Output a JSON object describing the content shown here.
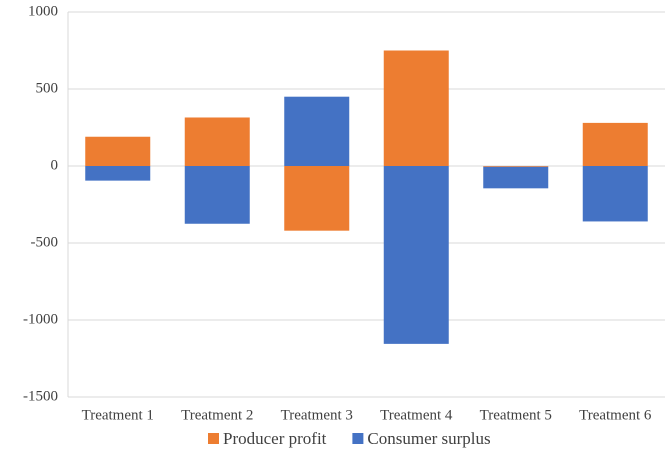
{
  "chart_data": {
    "type": "stacked-bar",
    "categories": [
      "Treatment 1",
      "Treatment 2",
      "Treatment 3",
      "Treatment 4",
      "Treatment 5",
      "Treatment 6"
    ],
    "series": [
      {
        "name": "Producer profit",
        "color": "#ed7d31",
        "values": [
          190,
          315,
          -420,
          750,
          -5,
          280
        ]
      },
      {
        "name": "Consumer surplus",
        "color": "#4472c4",
        "values": [
          -95,
          -375,
          450,
          -1155,
          -140,
          -360
        ]
      }
    ],
    "ylim": [
      -1500,
      1000
    ],
    "yticks": [
      -1500,
      -1000,
      -500,
      0,
      500,
      1000
    ],
    "grid": true,
    "legend": "bottom"
  }
}
